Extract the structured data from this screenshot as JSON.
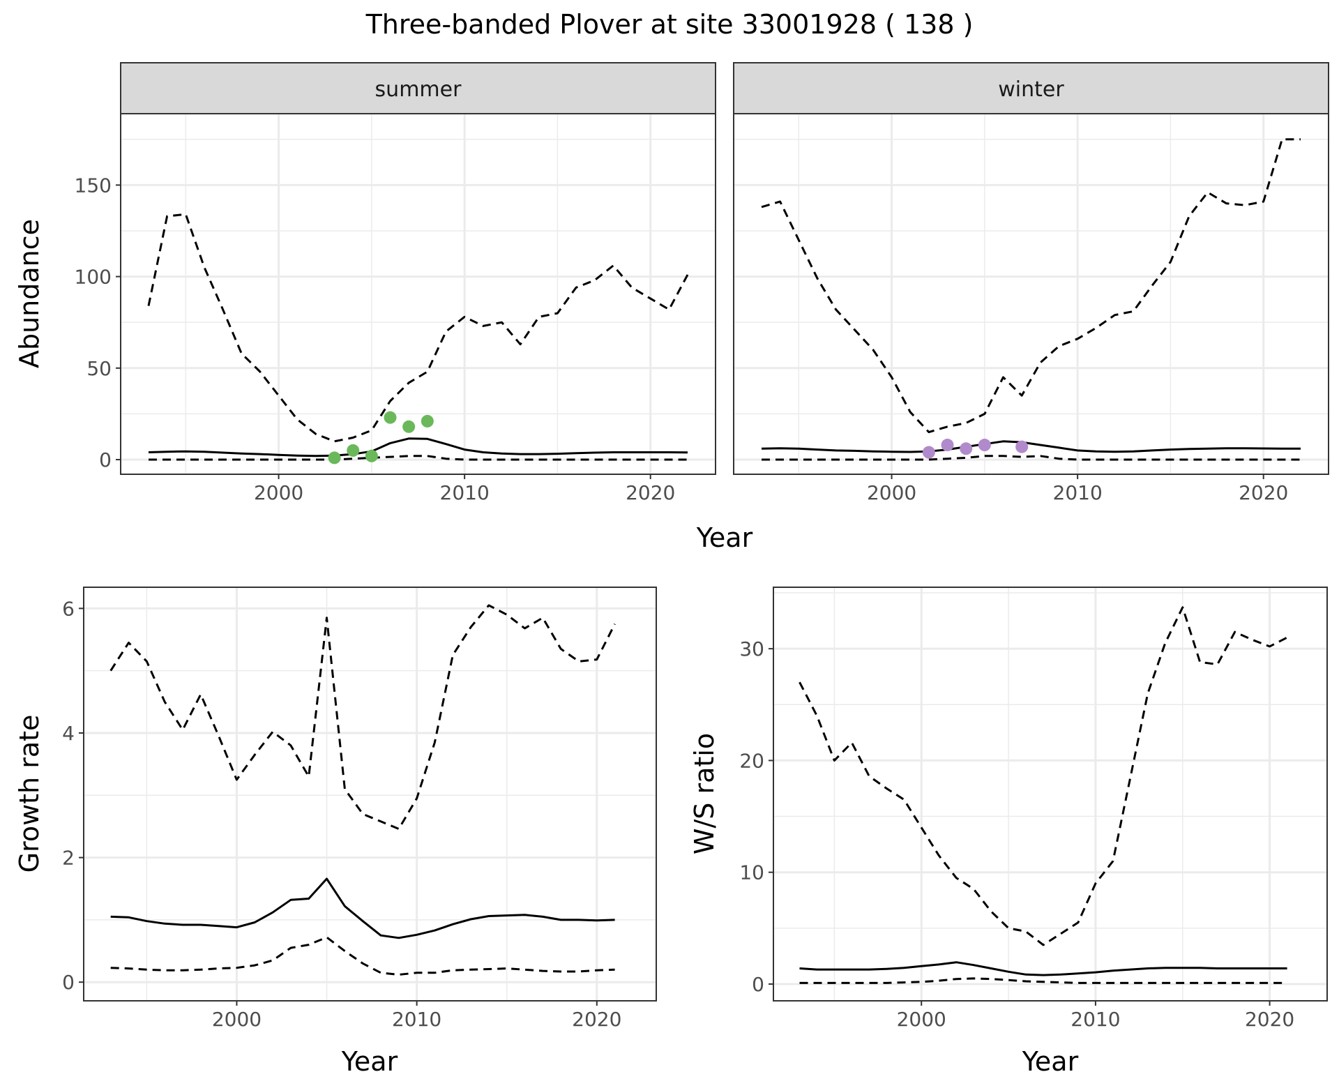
{
  "title": "Three-banded Plover at site 33001928 ( 138 )",
  "colors": {
    "summer_points": "#6ab85a",
    "winter_points": "#b18acb",
    "line": "#000000",
    "strip_fill": "#d9d9d9",
    "grid": "#ebebeb",
    "panel_border": "#333333"
  },
  "chart_data": [
    {
      "id": "abundance",
      "type": "line",
      "ylabel": "Abundance",
      "xlabel": "Year",
      "xlim": [
        1991.5,
        2023.5
      ],
      "ylim": [
        -8,
        189
      ],
      "xticks": [
        2000,
        2010,
        2020
      ],
      "yticks": [
        0,
        50,
        100,
        150
      ],
      "facets": [
        {
          "label": "summer",
          "x": [
            1993,
            1994,
            1995,
            1996,
            1997,
            1998,
            1999,
            2000,
            2001,
            2002,
            2003,
            2004,
            2005,
            2006,
            2007,
            2008,
            2009,
            2010,
            2011,
            2012,
            2013,
            2014,
            2015,
            2016,
            2017,
            2018,
            2019,
            2020,
            2021,
            2022
          ],
          "series": [
            {
              "role": "mean",
              "style": "solid",
              "values": [
                4,
                4.3,
                4.5,
                4.3,
                3.8,
                3.3,
                3,
                2.6,
                2.2,
                2,
                2.2,
                3,
                4.5,
                9,
                11.5,
                11.3,
                8.5,
                5.5,
                4,
                3.3,
                3,
                3,
                3.2,
                3.5,
                3.8,
                4,
                4,
                4,
                4,
                3.9
              ]
            },
            {
              "role": "upper",
              "style": "dashed",
              "values": [
                84,
                133,
                134,
                105,
                82,
                58,
                48,
                35,
                22,
                14,
                10,
                12,
                16,
                32,
                42,
                48,
                70,
                78,
                73,
                75,
                63,
                78,
                80,
                94,
                98,
                106,
                94,
                88,
                82,
                101
              ]
            },
            {
              "role": "lower",
              "style": "dashed",
              "values": [
                0,
                0,
                0,
                0,
                0,
                0,
                0,
                0,
                0,
                0,
                0,
                0.5,
                1,
                1.5,
                2,
                2,
                0.5,
                0,
                0,
                0,
                0,
                0,
                0,
                0,
                0,
                0,
                0,
                0,
                0,
                0
              ]
            }
          ],
          "points": {
            "x": [
              2003,
              2004,
              2005,
              2006,
              2007,
              2008
            ],
            "y": [
              1,
              5,
              2,
              23,
              18,
              21
            ]
          }
        },
        {
          "label": "winter",
          "x": [
            1993,
            1994,
            1995,
            1996,
            1997,
            1998,
            1999,
            2000,
            2001,
            2002,
            2003,
            2004,
            2005,
            2006,
            2007,
            2008,
            2009,
            2010,
            2011,
            2012,
            2013,
            2014,
            2015,
            2016,
            2017,
            2018,
            2019,
            2020,
            2021,
            2022
          ],
          "series": [
            {
              "role": "mean",
              "style": "solid",
              "values": [
                6,
                6.2,
                6,
                5.5,
                5,
                4.8,
                4.5,
                4.3,
                4.2,
                4.5,
                5.5,
                7,
                8.5,
                10,
                9.5,
                8,
                6.5,
                5,
                4.5,
                4.3,
                4.5,
                5,
                5.5,
                5.8,
                6,
                6.2,
                6.2,
                6.1,
                6,
                6
              ]
            },
            {
              "role": "upper",
              "style": "dashed",
              "values": [
                138,
                141,
                120,
                99,
                82,
                71,
                60,
                45,
                26,
                15,
                18,
                20,
                25,
                45,
                35,
                53,
                62,
                66,
                72,
                79,
                81,
                95,
                108,
                133,
                146,
                140,
                139,
                141,
                175,
                175
              ]
            },
            {
              "role": "lower",
              "style": "dashed",
              "values": [
                0,
                0,
                0,
                0,
                0,
                0,
                0,
                0,
                0,
                0,
                0.5,
                1,
                2,
                2,
                1.5,
                2,
                0.5,
                0,
                0,
                0,
                0,
                0,
                0,
                0,
                0,
                0,
                0,
                0,
                0,
                0
              ]
            }
          ],
          "points": {
            "x": [
              2002,
              2003,
              2004,
              2005,
              2007
            ],
            "y": [
              4,
              8,
              6,
              8,
              7
            ]
          }
        }
      ]
    },
    {
      "id": "growth",
      "type": "line",
      "ylabel": "Growth rate",
      "xlabel": "Year",
      "xlim": [
        1991.5,
        2023.3
      ],
      "ylim": [
        -0.3,
        6.34
      ],
      "xticks": [
        2000,
        2010,
        2020
      ],
      "yticks": [
        0,
        2,
        4,
        6
      ],
      "x": [
        1993,
        1994,
        1995,
        1996,
        1997,
        1998,
        1999,
        2000,
        2001,
        2002,
        2003,
        2004,
        2005,
        2006,
        2007,
        2008,
        2009,
        2010,
        2011,
        2012,
        2013,
        2014,
        2015,
        2016,
        2017,
        2018,
        2019,
        2020,
        2021
      ],
      "series": [
        {
          "role": "mean",
          "style": "solid",
          "values": [
            1.05,
            1.04,
            0.98,
            0.94,
            0.92,
            0.92,
            0.9,
            0.88,
            0.96,
            1.12,
            1.32,
            1.34,
            1.66,
            1.22,
            0.98,
            0.75,
            0.71,
            0.76,
            0.83,
            0.93,
            1.01,
            1.06,
            1.07,
            1.08,
            1.05,
            1,
            1,
            0.99,
            1
          ]
        },
        {
          "role": "upper",
          "style": "dashed",
          "values": [
            5,
            5.45,
            5.15,
            4.5,
            4.05,
            4.62,
            3.95,
            3.25,
            3.65,
            4.02,
            3.8,
            3.3,
            5.85,
            3.1,
            2.7,
            2.58,
            2.46,
            2.95,
            3.85,
            5.25,
            5.7,
            6.05,
            5.9,
            5.68,
            5.85,
            5.35,
            5.15,
            5.18,
            5.75
          ]
        },
        {
          "role": "lower",
          "style": "dashed",
          "values": [
            0.23,
            0.22,
            0.2,
            0.19,
            0.19,
            0.2,
            0.22,
            0.23,
            0.27,
            0.35,
            0.55,
            0.6,
            0.72,
            0.5,
            0.3,
            0.15,
            0.12,
            0.15,
            0.15,
            0.19,
            0.2,
            0.21,
            0.22,
            0.2,
            0.18,
            0.17,
            0.17,
            0.19,
            0.2
          ]
        }
      ]
    },
    {
      "id": "ratio",
      "type": "line",
      "ylabel": "W/S ratio",
      "xlabel": "Year",
      "xlim": [
        1991.5,
        2023.3
      ],
      "ylim": [
        -1.5,
        35.5
      ],
      "xticks": [
        2000,
        2010,
        2020
      ],
      "yticks": [
        0,
        10,
        20,
        30
      ],
      "x": [
        1993,
        1994,
        1995,
        1996,
        1997,
        1998,
        1999,
        2000,
        2001,
        2002,
        2003,
        2004,
        2005,
        2006,
        2007,
        2008,
        2009,
        2010,
        2011,
        2012,
        2013,
        2014,
        2015,
        2016,
        2017,
        2018,
        2019,
        2020,
        2021
      ],
      "series": [
        {
          "role": "mean",
          "style": "solid",
          "values": [
            1.4,
            1.3,
            1.3,
            1.3,
            1.3,
            1.35,
            1.45,
            1.6,
            1.75,
            1.95,
            1.7,
            1.4,
            1.1,
            0.85,
            0.8,
            0.85,
            0.95,
            1.05,
            1.2,
            1.3,
            1.4,
            1.45,
            1.45,
            1.45,
            1.4,
            1.4,
            1.4,
            1.4,
            1.4
          ]
        },
        {
          "role": "upper",
          "style": "dashed",
          "values": [
            27,
            24,
            20,
            21.6,
            18.6,
            17.5,
            16.5,
            14,
            11.5,
            9.5,
            8.5,
            6.5,
            5,
            4.7,
            3.5,
            4.5,
            5.5,
            9,
            11,
            18.5,
            26,
            30.5,
            33.7,
            28.8,
            28.6,
            31.5,
            30.8,
            30.2,
            31
          ]
        },
        {
          "role": "lower",
          "style": "dashed",
          "values": [
            0.1,
            0.1,
            0.1,
            0.1,
            0.1,
            0.1,
            0.15,
            0.2,
            0.3,
            0.45,
            0.5,
            0.45,
            0.35,
            0.25,
            0.2,
            0.15,
            0.1,
            0.1,
            0.1,
            0.1,
            0.1,
            0.1,
            0.1,
            0.1,
            0.1,
            0.1,
            0.1,
            0.1,
            0.1
          ]
        }
      ]
    }
  ]
}
